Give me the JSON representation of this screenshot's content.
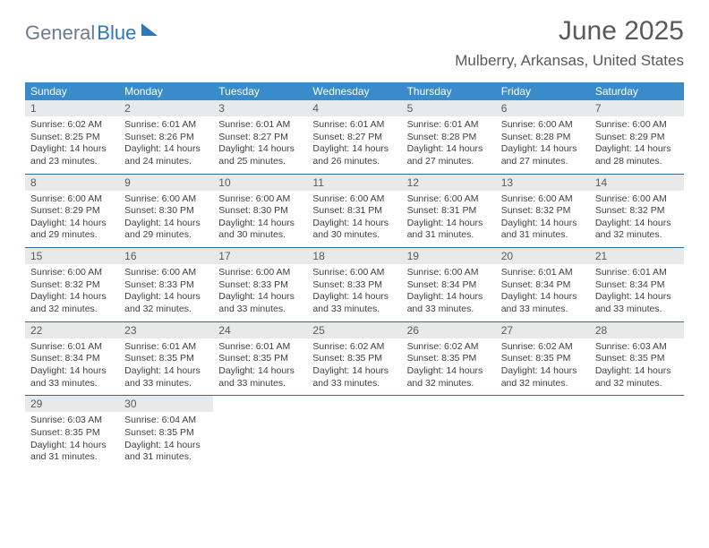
{
  "logo": {
    "part1": "General",
    "part2": "Blue"
  },
  "title": "June 2025",
  "location": "Mulberry, Arkansas, United States",
  "colors": {
    "header_bg": "#3a8bc9",
    "header_text": "#ffffff",
    "daynum_bg": "#e7e9eb",
    "row_border": "#3a6a8f",
    "text": "#404040",
    "title_text": "#5a5a5a",
    "logo_gray": "#6b7c8c",
    "logo_blue": "#2f78b7",
    "background": "#ffffff"
  },
  "layout": {
    "columns": 7,
    "weeks": 5,
    "daynum_fontsize": 12,
    "body_fontsize": 10.5,
    "title_fontsize": 30,
    "location_fontsize": 17,
    "weekday_fontsize": 12
  },
  "weekdays": [
    "Sunday",
    "Monday",
    "Tuesday",
    "Wednesday",
    "Thursday",
    "Friday",
    "Saturday"
  ],
  "weeks": [
    [
      {
        "n": "1",
        "sr": "Sunrise: 6:02 AM",
        "ss": "Sunset: 8:25 PM",
        "dl": "Daylight: 14 hours and 23 minutes."
      },
      {
        "n": "2",
        "sr": "Sunrise: 6:01 AM",
        "ss": "Sunset: 8:26 PM",
        "dl": "Daylight: 14 hours and 24 minutes."
      },
      {
        "n": "3",
        "sr": "Sunrise: 6:01 AM",
        "ss": "Sunset: 8:27 PM",
        "dl": "Daylight: 14 hours and 25 minutes."
      },
      {
        "n": "4",
        "sr": "Sunrise: 6:01 AM",
        "ss": "Sunset: 8:27 PM",
        "dl": "Daylight: 14 hours and 26 minutes."
      },
      {
        "n": "5",
        "sr": "Sunrise: 6:01 AM",
        "ss": "Sunset: 8:28 PM",
        "dl": "Daylight: 14 hours and 27 minutes."
      },
      {
        "n": "6",
        "sr": "Sunrise: 6:00 AM",
        "ss": "Sunset: 8:28 PM",
        "dl": "Daylight: 14 hours and 27 minutes."
      },
      {
        "n": "7",
        "sr": "Sunrise: 6:00 AM",
        "ss": "Sunset: 8:29 PM",
        "dl": "Daylight: 14 hours and 28 minutes."
      }
    ],
    [
      {
        "n": "8",
        "sr": "Sunrise: 6:00 AM",
        "ss": "Sunset: 8:29 PM",
        "dl": "Daylight: 14 hours and 29 minutes."
      },
      {
        "n": "9",
        "sr": "Sunrise: 6:00 AM",
        "ss": "Sunset: 8:30 PM",
        "dl": "Daylight: 14 hours and 29 minutes."
      },
      {
        "n": "10",
        "sr": "Sunrise: 6:00 AM",
        "ss": "Sunset: 8:30 PM",
        "dl": "Daylight: 14 hours and 30 minutes."
      },
      {
        "n": "11",
        "sr": "Sunrise: 6:00 AM",
        "ss": "Sunset: 8:31 PM",
        "dl": "Daylight: 14 hours and 30 minutes."
      },
      {
        "n": "12",
        "sr": "Sunrise: 6:00 AM",
        "ss": "Sunset: 8:31 PM",
        "dl": "Daylight: 14 hours and 31 minutes."
      },
      {
        "n": "13",
        "sr": "Sunrise: 6:00 AM",
        "ss": "Sunset: 8:32 PM",
        "dl": "Daylight: 14 hours and 31 minutes."
      },
      {
        "n": "14",
        "sr": "Sunrise: 6:00 AM",
        "ss": "Sunset: 8:32 PM",
        "dl": "Daylight: 14 hours and 32 minutes."
      }
    ],
    [
      {
        "n": "15",
        "sr": "Sunrise: 6:00 AM",
        "ss": "Sunset: 8:32 PM",
        "dl": "Daylight: 14 hours and 32 minutes."
      },
      {
        "n": "16",
        "sr": "Sunrise: 6:00 AM",
        "ss": "Sunset: 8:33 PM",
        "dl": "Daylight: 14 hours and 32 minutes."
      },
      {
        "n": "17",
        "sr": "Sunrise: 6:00 AM",
        "ss": "Sunset: 8:33 PM",
        "dl": "Daylight: 14 hours and 33 minutes."
      },
      {
        "n": "18",
        "sr": "Sunrise: 6:00 AM",
        "ss": "Sunset: 8:33 PM",
        "dl": "Daylight: 14 hours and 33 minutes."
      },
      {
        "n": "19",
        "sr": "Sunrise: 6:00 AM",
        "ss": "Sunset: 8:34 PM",
        "dl": "Daylight: 14 hours and 33 minutes."
      },
      {
        "n": "20",
        "sr": "Sunrise: 6:01 AM",
        "ss": "Sunset: 8:34 PM",
        "dl": "Daylight: 14 hours and 33 minutes."
      },
      {
        "n": "21",
        "sr": "Sunrise: 6:01 AM",
        "ss": "Sunset: 8:34 PM",
        "dl": "Daylight: 14 hours and 33 minutes."
      }
    ],
    [
      {
        "n": "22",
        "sr": "Sunrise: 6:01 AM",
        "ss": "Sunset: 8:34 PM",
        "dl": "Daylight: 14 hours and 33 minutes."
      },
      {
        "n": "23",
        "sr": "Sunrise: 6:01 AM",
        "ss": "Sunset: 8:35 PM",
        "dl": "Daylight: 14 hours and 33 minutes."
      },
      {
        "n": "24",
        "sr": "Sunrise: 6:01 AM",
        "ss": "Sunset: 8:35 PM",
        "dl": "Daylight: 14 hours and 33 minutes."
      },
      {
        "n": "25",
        "sr": "Sunrise: 6:02 AM",
        "ss": "Sunset: 8:35 PM",
        "dl": "Daylight: 14 hours and 33 minutes."
      },
      {
        "n": "26",
        "sr": "Sunrise: 6:02 AM",
        "ss": "Sunset: 8:35 PM",
        "dl": "Daylight: 14 hours and 32 minutes."
      },
      {
        "n": "27",
        "sr": "Sunrise: 6:02 AM",
        "ss": "Sunset: 8:35 PM",
        "dl": "Daylight: 14 hours and 32 minutes."
      },
      {
        "n": "28",
        "sr": "Sunrise: 6:03 AM",
        "ss": "Sunset: 8:35 PM",
        "dl": "Daylight: 14 hours and 32 minutes."
      }
    ],
    [
      {
        "n": "29",
        "sr": "Sunrise: 6:03 AM",
        "ss": "Sunset: 8:35 PM",
        "dl": "Daylight: 14 hours and 31 minutes."
      },
      {
        "n": "30",
        "sr": "Sunrise: 6:04 AM",
        "ss": "Sunset: 8:35 PM",
        "dl": "Daylight: 14 hours and 31 minutes."
      },
      null,
      null,
      null,
      null,
      null
    ]
  ]
}
